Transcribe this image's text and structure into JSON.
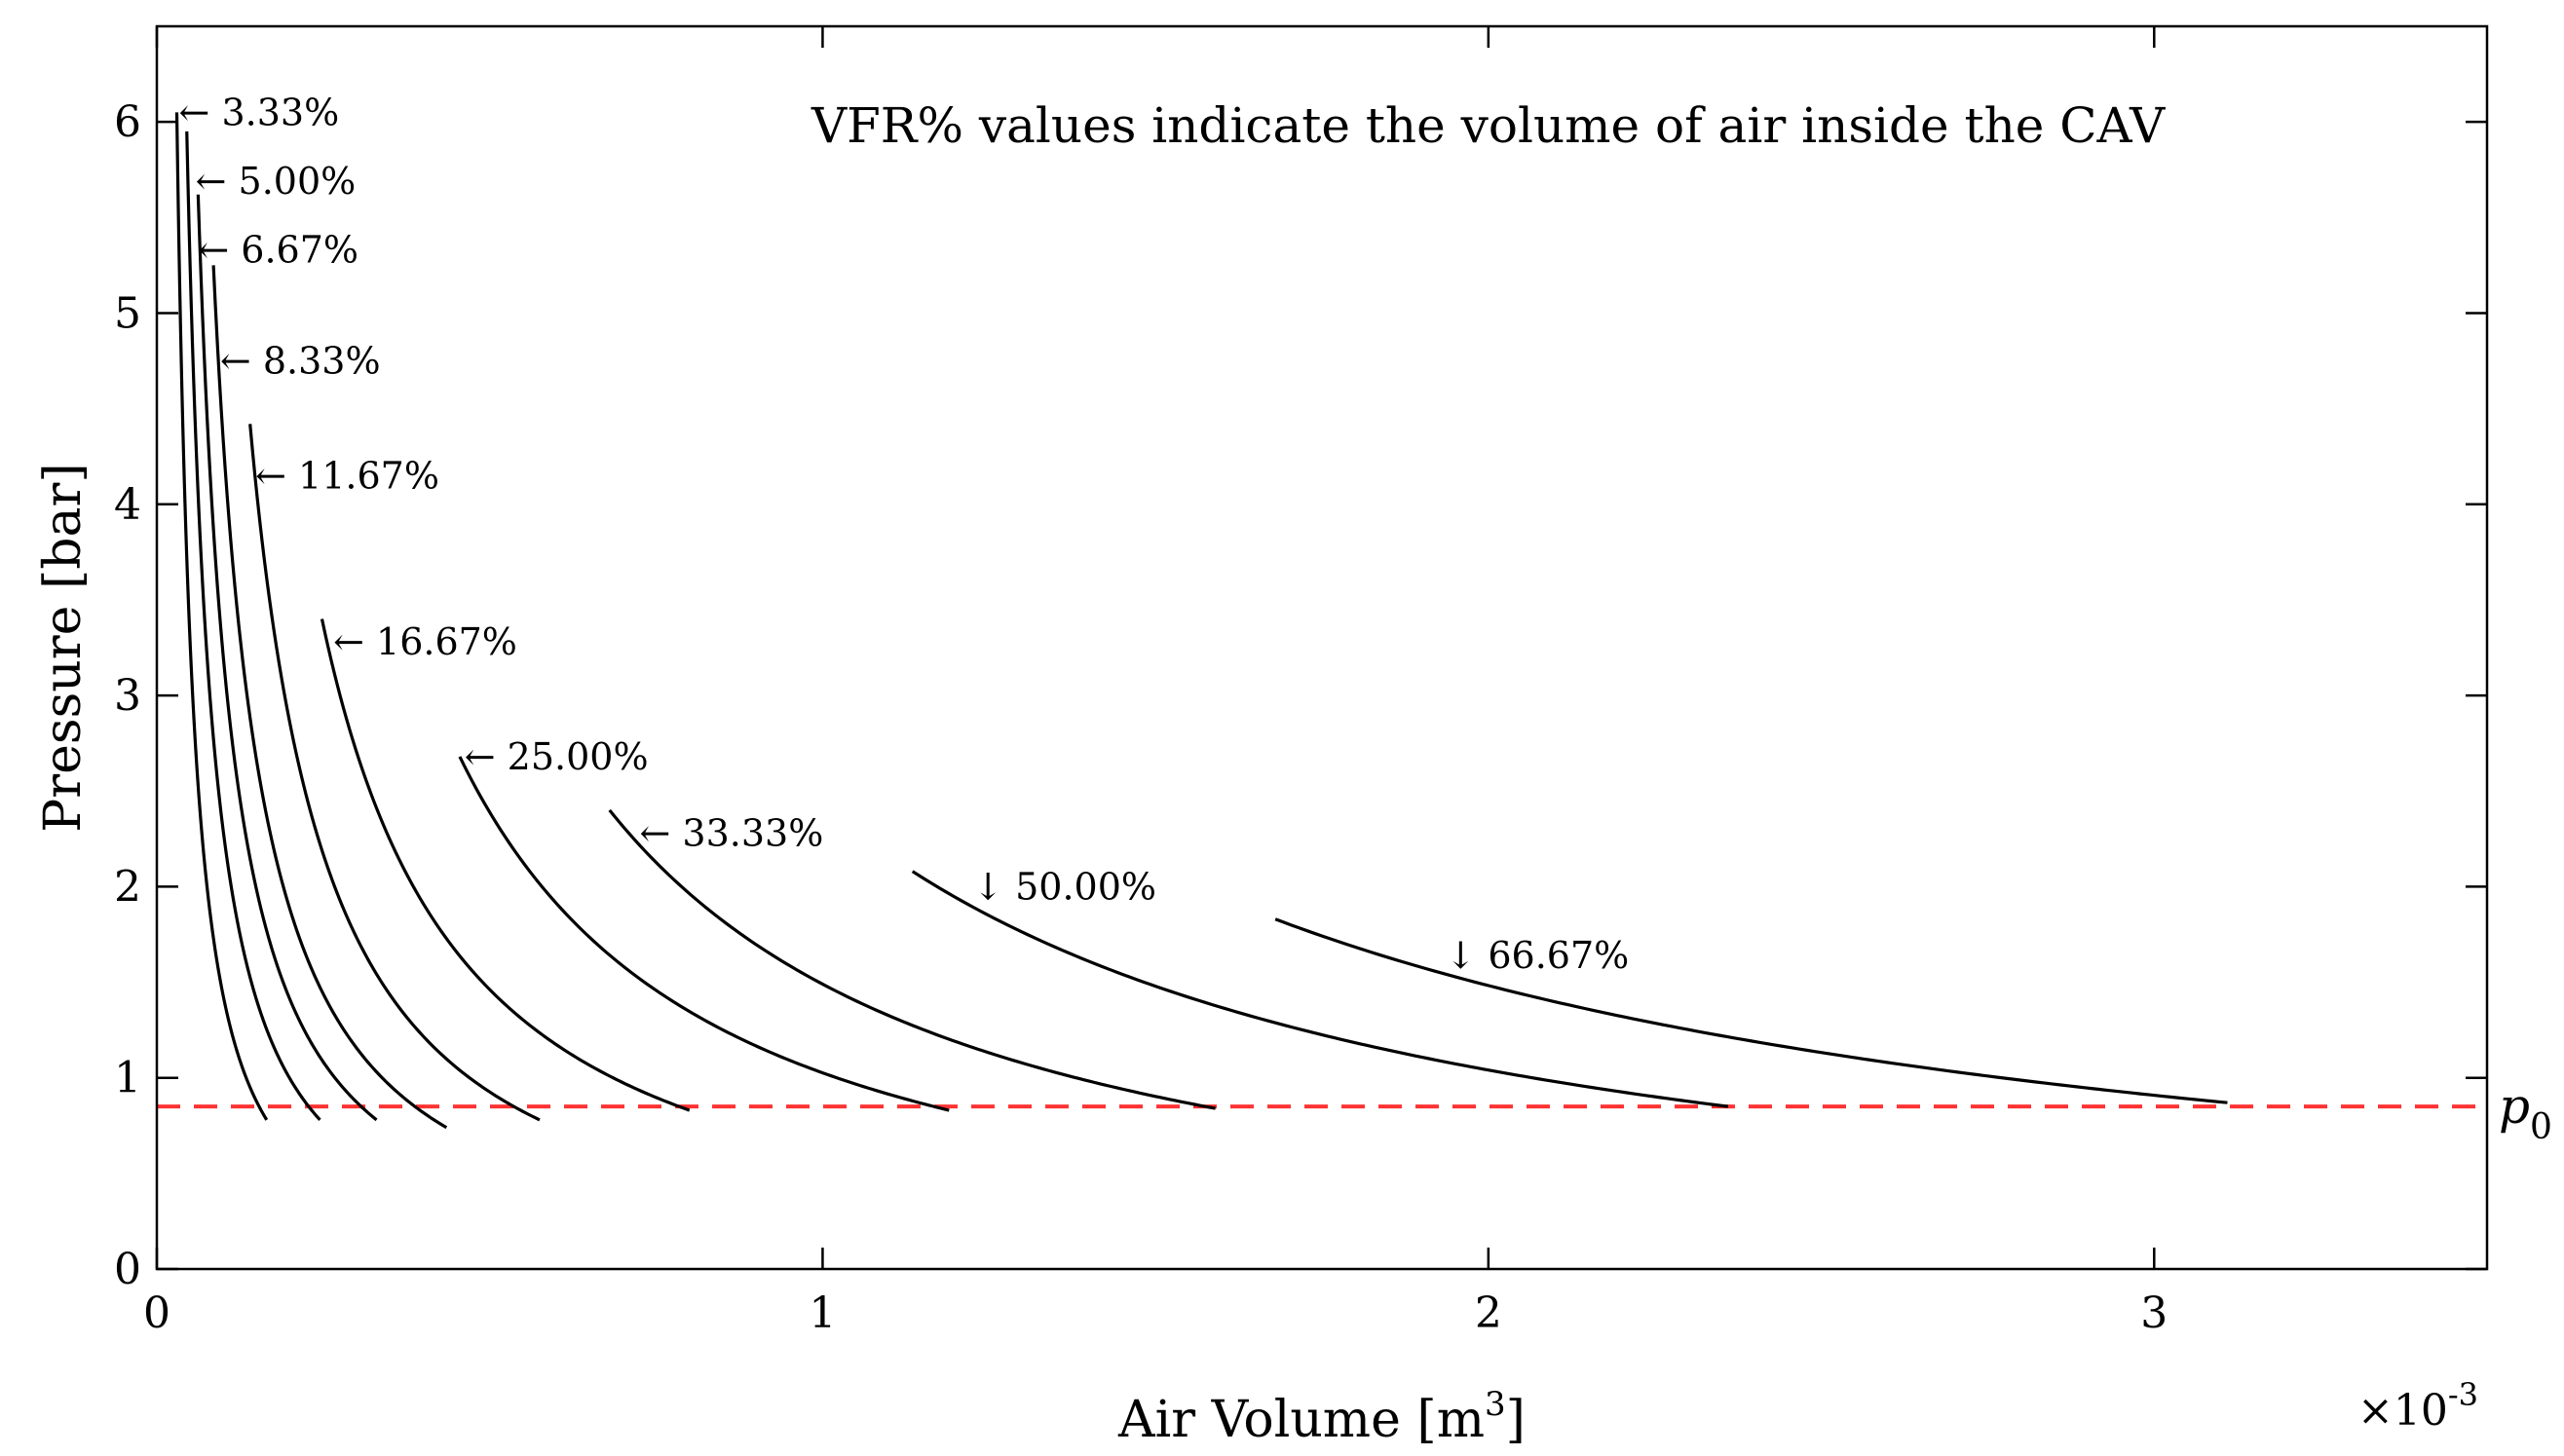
{
  "chart_data": {
    "type": "line",
    "title": "",
    "note": "VFR% values indicate the volume of air inside the CAV",
    "xlabel": "Air Volume [m",
    "xlabel_sup": "3",
    "xlabel_end": "]",
    "ylabel": "Pressure [bar]",
    "x_multiplier": "×10",
    "x_multiplier_exp": "-3",
    "xlim": [
      0,
      3.5
    ],
    "ylim": [
      0,
      6.5
    ],
    "xticks": [
      0,
      1,
      2,
      3
    ],
    "xtick_labels": [
      "0",
      "1",
      "2",
      "3"
    ],
    "yticks": [
      0,
      1,
      2,
      3,
      4,
      5,
      6
    ],
    "ytick_labels": [
      "0",
      "1",
      "2",
      "3",
      "4",
      "5",
      "6"
    ],
    "reference_line": {
      "label": "p",
      "label_sub": "0",
      "y": 0.85,
      "color": "#ff3333",
      "style": "dashed"
    },
    "series": [
      {
        "name": "3.33%",
        "label": "← 3.33%",
        "arrow": "left",
        "x_start": 0.03,
        "y_start": 6.05,
        "x_end": 0.165,
        "y_end": 0.78,
        "label_x": 0.033,
        "label_y": 6.05
      },
      {
        "name": "5.00%",
        "label": "← 5.00%",
        "arrow": "left",
        "x_start": 0.045,
        "y_start": 5.95,
        "x_end": 0.245,
        "y_end": 0.78,
        "label_x": 0.058,
        "label_y": 5.69
      },
      {
        "name": "6.67%",
        "label": "← 6.67%",
        "arrow": "left",
        "x_start": 0.062,
        "y_start": 5.62,
        "x_end": 0.33,
        "y_end": 0.78,
        "label_x": 0.062,
        "label_y": 5.33
      },
      {
        "name": "8.33%",
        "label": "← 8.33%",
        "arrow": "left",
        "x_start": 0.085,
        "y_start": 5.25,
        "x_end": 0.435,
        "y_end": 0.74,
        "label_x": 0.095,
        "label_y": 4.75
      },
      {
        "name": "11.67%",
        "label": "← 11.67%",
        "arrow": "left",
        "x_start": 0.14,
        "y_start": 4.42,
        "x_end": 0.575,
        "y_end": 0.78,
        "label_x": 0.148,
        "label_y": 4.15
      },
      {
        "name": "16.67%",
        "label": "← 16.67%",
        "arrow": "left",
        "x_start": 0.248,
        "y_start": 3.4,
        "x_end": 0.8,
        "y_end": 0.83,
        "label_x": 0.265,
        "label_y": 3.28
      },
      {
        "name": "25.00%",
        "label": "← 25.00%",
        "arrow": "left",
        "x_start": 0.455,
        "y_start": 2.68,
        "x_end": 1.19,
        "y_end": 0.83,
        "label_x": 0.462,
        "label_y": 2.68
      },
      {
        "name": "33.33%",
        "label": "← 33.33%",
        "arrow": "left",
        "x_start": 0.68,
        "y_start": 2.4,
        "x_end": 1.59,
        "y_end": 0.84,
        "label_x": 0.725,
        "label_y": 2.28
      },
      {
        "name": "50.00%",
        "label": "↓ 50.00%",
        "arrow": "down",
        "x_start": 1.135,
        "y_start": 2.08,
        "x_end": 2.36,
        "y_end": 0.85,
        "label_x": 1.225,
        "label_y": 2.0
      },
      {
        "name": "66.67%",
        "label": "↓ 66.67%",
        "arrow": "down",
        "x_start": 1.68,
        "y_start": 1.83,
        "x_end": 3.11,
        "y_end": 0.87,
        "label_x": 1.935,
        "label_y": 1.64
      }
    ]
  }
}
